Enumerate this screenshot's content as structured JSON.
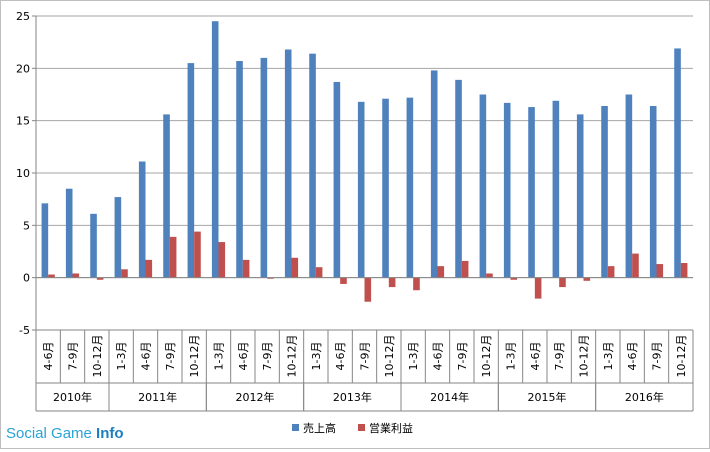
{
  "chart_data": {
    "type": "bar",
    "categories": [
      "4-6月",
      "7-9月",
      "10-12月",
      "1-3月",
      "4-6月",
      "7-9月",
      "10-12月",
      "1-3月",
      "4-6月",
      "7-9月",
      "10-12月",
      "1-3月",
      "4-6月",
      "7-9月",
      "10-12月",
      "1-3月",
      "4-6月",
      "7-9月",
      "10-12月",
      "1-3月",
      "4-6月",
      "7-9月",
      "10-12月",
      "1-3月",
      "4-6月",
      "7-9月",
      "10-12月"
    ],
    "groups": [
      {
        "label": "2010年",
        "count": 3
      },
      {
        "label": "2011年",
        "count": 4
      },
      {
        "label": "2012年",
        "count": 4
      },
      {
        "label": "2013年",
        "count": 4
      },
      {
        "label": "2014年",
        "count": 4
      },
      {
        "label": "2015年",
        "count": 4
      },
      {
        "label": "2016年",
        "count": 4
      }
    ],
    "series": [
      {
        "name": "売上高",
        "color": "#4f81bd",
        "values": [
          7.1,
          8.5,
          6.1,
          7.7,
          11.1,
          15.6,
          20.5,
          24.5,
          20.7,
          21.0,
          21.8,
          21.4,
          18.7,
          16.8,
          17.1,
          17.2,
          19.8,
          18.9,
          17.5,
          16.7,
          16.3,
          16.9,
          15.6,
          16.4,
          17.5,
          16.4,
          21.9
        ]
      },
      {
        "name": "営業利益",
        "color": "#c0504d",
        "values": [
          0.3,
          0.4,
          -0.2,
          0.8,
          1.7,
          3.9,
          4.4,
          3.4,
          1.7,
          -0.1,
          1.9,
          1.0,
          -0.6,
          -2.3,
          -0.9,
          -1.2,
          1.1,
          1.6,
          0.4,
          -0.2,
          -2.0,
          -0.9,
          -0.3,
          1.1,
          2.3,
          1.3,
          1.4
        ]
      }
    ],
    "ylim": [
      -5,
      25
    ],
    "yticks": [
      -5,
      0,
      5,
      10,
      15,
      20,
      25
    ],
    "grid": true,
    "legend": "bottom-center"
  },
  "watermark": {
    "part1": "Social Game ",
    "part2": "Info"
  }
}
